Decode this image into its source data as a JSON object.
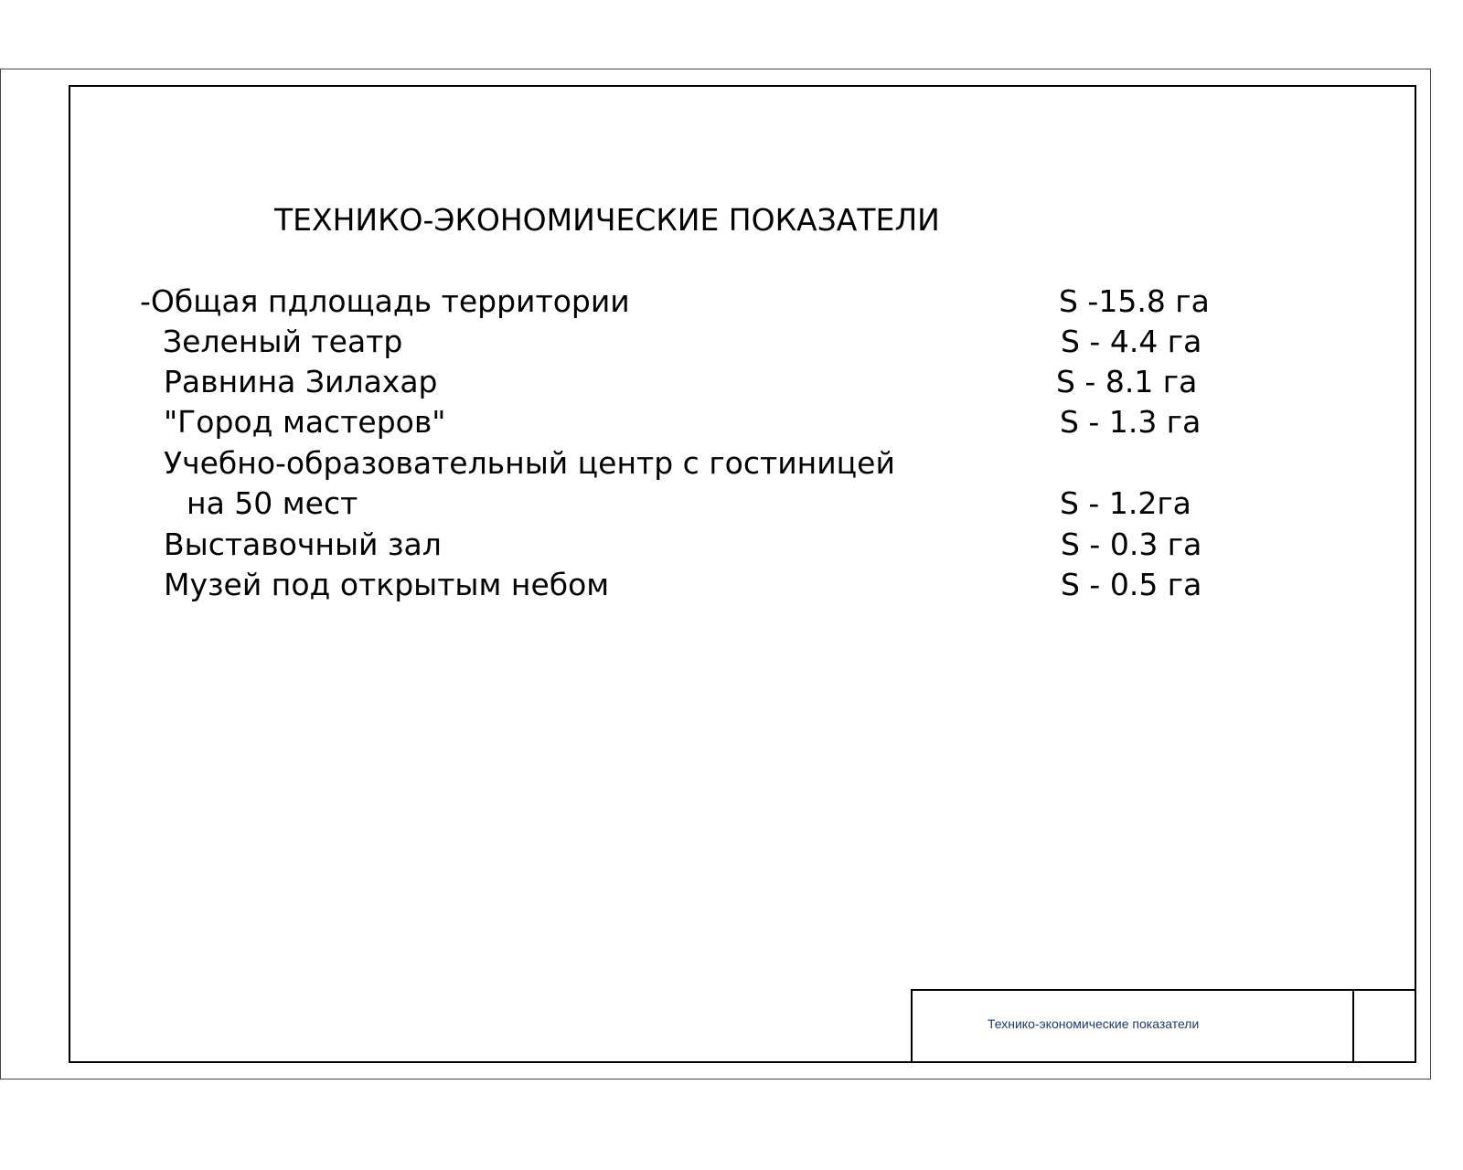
{
  "sheet": {
    "title": "ТЕХНИКО-ЭКОНОМИЧЕСКИЕ ПОКАЗАТЕЛИ",
    "rows": [
      {
        "label": "-Общая пдлощадь территории",
        "value": "S  -15.8 га"
      },
      {
        "label": "Зеленый театр",
        "value": "S - 4.4 га"
      },
      {
        "label": "Равнина Зилахар",
        "value": "S - 8.1 га"
      },
      {
        "label": "\"Город мастеров\"",
        "value": "S - 1.3 га"
      },
      {
        "label": "Учебно-образовательный центр с гостиницей",
        "value": ""
      },
      {
        "label": "на 50 мест",
        "value": "S - 1.2га"
      },
      {
        "label": "Выставочный зал",
        "value": "S - 0.3 га"
      },
      {
        "label": "Музей под открытым небом",
        "value": "S - 0.5 га"
      }
    ],
    "title_block": {
      "name": "Технико-экономические показатели"
    },
    "colors": {
      "title_block_text": "#1f3a6e"
    }
  }
}
